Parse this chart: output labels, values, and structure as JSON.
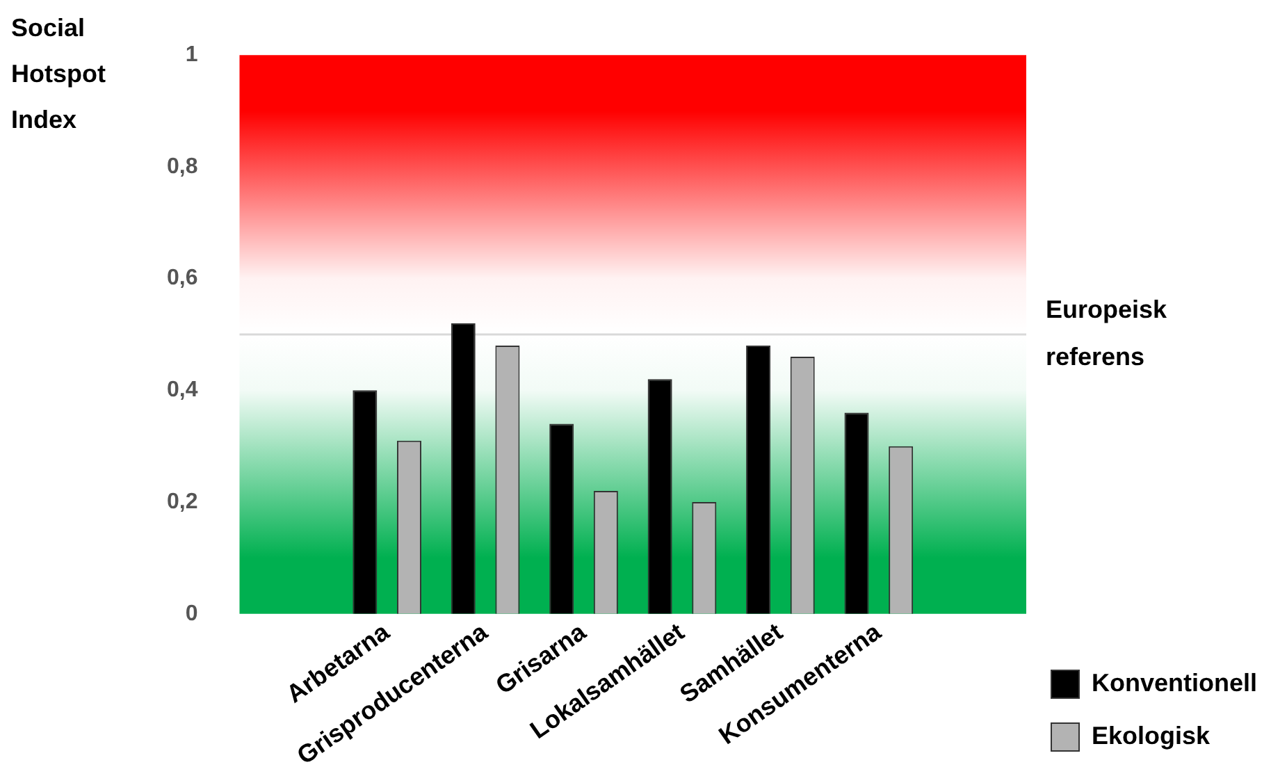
{
  "chart_data": {
    "type": "bar",
    "ylabel": "Social Hotspot Index",
    "categories": [
      null,
      "Arbetarna",
      "Grisproducenterna",
      "Grisarna",
      "Lokalsamhället",
      "Samhället",
      "Konsumenterna",
      null
    ],
    "series": [
      {
        "name": "Konventionell",
        "color": "#000000",
        "values": [
          null,
          0.4,
          0.52,
          0.34,
          0.42,
          0.48,
          0.36,
          null
        ]
      },
      {
        "name": "Ekologisk",
        "color": "#b3b3b3",
        "values": [
          null,
          0.31,
          0.48,
          0.22,
          0.2,
          0.46,
          0.3,
          null
        ]
      }
    ],
    "ylim": [
      0,
      1
    ],
    "yticks": [
      0,
      {
        "value": 0.2,
        "label": "0,2"
      },
      {
        "value": 0.4,
        "label": "0,4"
      },
      {
        "value": 0.6,
        "label": "0,6"
      },
      {
        "value": 0.8,
        "label": "0,8"
      },
      1
    ],
    "ref_lines": [
      {
        "axis": "y",
        "value": 0.5,
        "label": "Europeisk referens",
        "color": "#d9d9d9"
      }
    ],
    "bands": [
      {
        "axis": "y",
        "from": 0.5,
        "to": 1,
        "color": "#ff0000"
      },
      {
        "axis": "y",
        "from": 0,
        "to": 0.5,
        "color": "#00b050"
      }
    ],
    "legend": "bottom right",
    "grid": false
  }
}
